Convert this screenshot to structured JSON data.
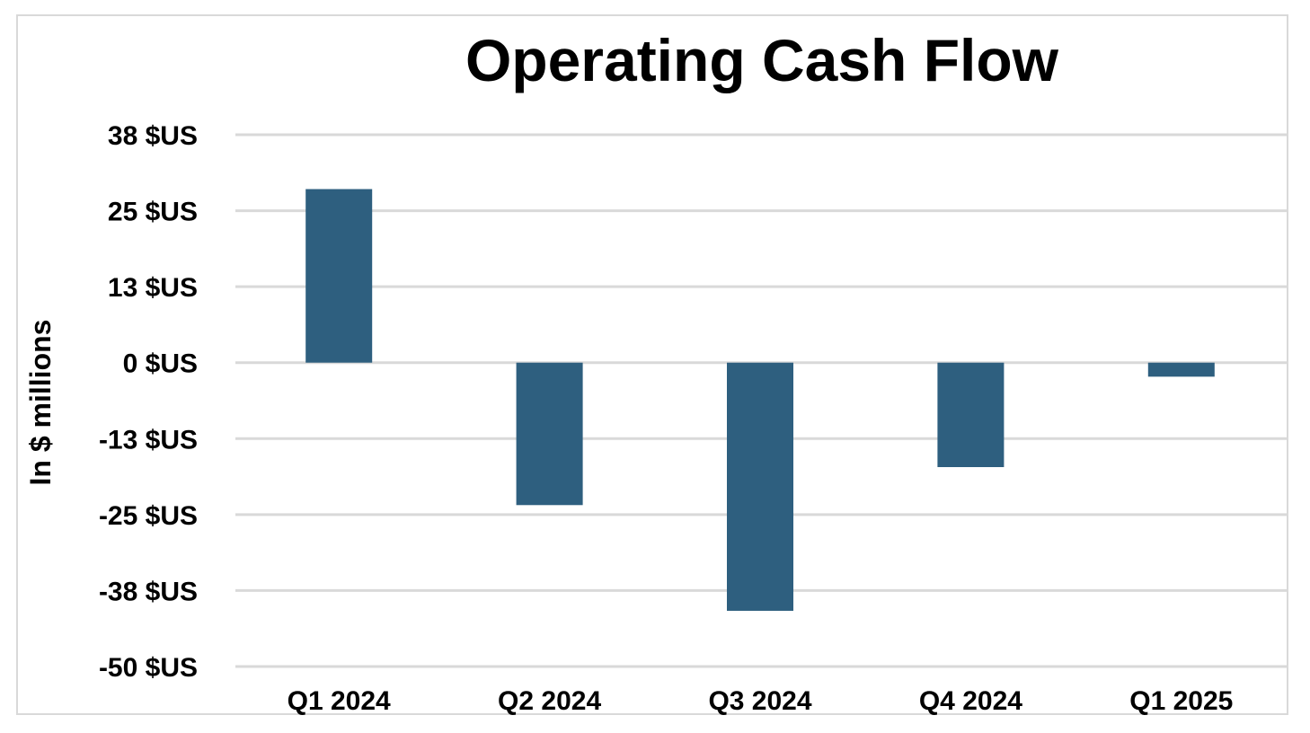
{
  "chart_data": {
    "type": "bar",
    "title": "Operating Cash Flow",
    "xlabel": "",
    "ylabel": "In $ millions",
    "categories": [
      "Q1 2024",
      "Q2 2024",
      "Q3 2024",
      "Q4 2024",
      "Q1 2025"
    ],
    "values": [
      28.7,
      -23.5,
      -41.2,
      -17.5,
      -2.4
    ],
    "y_ticks": [
      38,
      25,
      13,
      0,
      -13,
      -25,
      -38,
      -50
    ],
    "y_tick_labels": [
      "38 $US",
      "25 $US",
      "13 $US",
      "0 $US",
      "-13 $US",
      "-25 $US",
      "-38 $US",
      "-50 $US"
    ],
    "ylim": [
      -50,
      38
    ],
    "grid": true,
    "legend": "none",
    "bar_color": "#2e5f7f",
    "grid_color": "#d9d9d9"
  }
}
